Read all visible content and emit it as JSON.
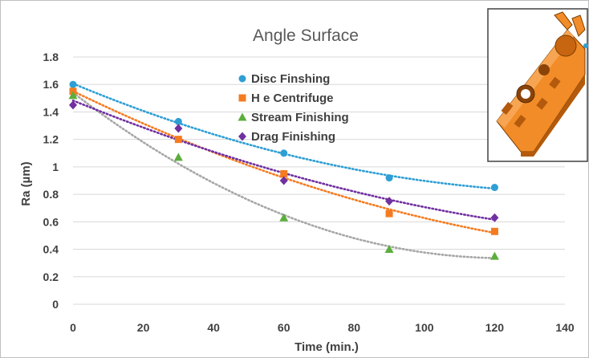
{
  "chart_data": {
    "type": "scatter",
    "title": "Angle Surface",
    "xlabel": "Time (min.)",
    "ylabel": "Ra (µm)",
    "xlim": [
      0,
      140
    ],
    "ylim": [
      0,
      1.8
    ],
    "xticks": [
      0,
      20,
      40,
      60,
      80,
      100,
      120,
      140
    ],
    "yticks": [
      0,
      0.2,
      0.4,
      0.6,
      0.8,
      1,
      1.2,
      1.4,
      1.6,
      1.8
    ],
    "x": [
      0,
      30,
      60,
      90,
      120
    ],
    "grid": "horizontal",
    "legend_position": "top-center",
    "trendlines": "polynomial dotted",
    "series": [
      {
        "name": "Disc Finshing",
        "color": "#2E9FD4",
        "marker": "circle",
        "values": [
          1.6,
          1.33,
          1.1,
          0.92,
          0.85
        ]
      },
      {
        "name": "H e Centrifuge",
        "color": "#F47B20",
        "marker": "square",
        "values": [
          1.55,
          1.2,
          0.95,
          0.66,
          0.53
        ]
      },
      {
        "name": "Stream Finishing",
        "color": "#5BAE3C",
        "marker": "triangle",
        "values": [
          1.52,
          1.07,
          0.63,
          0.4,
          0.35
        ]
      },
      {
        "name": "Drag Finishing",
        "color": "#7030A0",
        "marker": "diamond",
        "values": [
          1.45,
          1.28,
          0.9,
          0.75,
          0.63
        ]
      }
    ],
    "trendline_colors": {
      "Stream Finishing": "#A6A6A6"
    }
  },
  "inset": {
    "icon": "orange-3d-part-image",
    "color": "#F28C28"
  }
}
